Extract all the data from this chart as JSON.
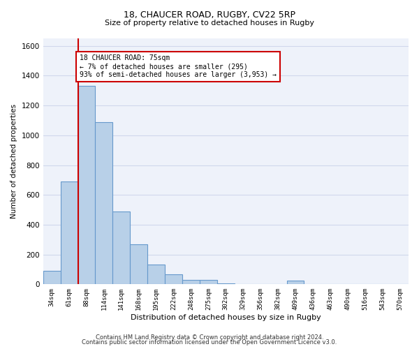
{
  "title1": "18, CHAUCER ROAD, RUGBY, CV22 5RP",
  "title2": "Size of property relative to detached houses in Rugby",
  "xlabel": "Distribution of detached houses by size in Rugby",
  "ylabel": "Number of detached properties",
  "footer1": "Contains HM Land Registry data © Crown copyright and database right 2024.",
  "footer2": "Contains public sector information licensed under the Open Government Licence v3.0.",
  "annotation_line1": "18 CHAUCER ROAD: 75sqm",
  "annotation_line2": "← 7% of detached houses are smaller (295)",
  "annotation_line3": "93% of semi-detached houses are larger (3,953) →",
  "bar_color": "#b8d0e8",
  "bar_edge_color": "#6699cc",
  "vline_color": "#cc0000",
  "annotation_box_edge": "#cc0000",
  "annotation_box_fill": "white",
  "categories": [
    "34sqm",
    "61sqm",
    "88sqm",
    "114sqm",
    "141sqm",
    "168sqm",
    "195sqm",
    "222sqm",
    "248sqm",
    "275sqm",
    "302sqm",
    "329sqm",
    "356sqm",
    "382sqm",
    "409sqm",
    "436sqm",
    "463sqm",
    "490sqm",
    "516sqm",
    "543sqm",
    "570sqm"
  ],
  "values": [
    90,
    690,
    1330,
    1090,
    490,
    270,
    135,
    65,
    30,
    30,
    5,
    0,
    0,
    0,
    25,
    0,
    0,
    0,
    0,
    0,
    0
  ],
  "vline_x": 1.5,
  "ylim": [
    0,
    1650
  ],
  "yticks": [
    0,
    200,
    400,
    600,
    800,
    1000,
    1200,
    1400,
    1600
  ],
  "grid_color": "#d0d8ec",
  "bg_color": "#eef2fa"
}
